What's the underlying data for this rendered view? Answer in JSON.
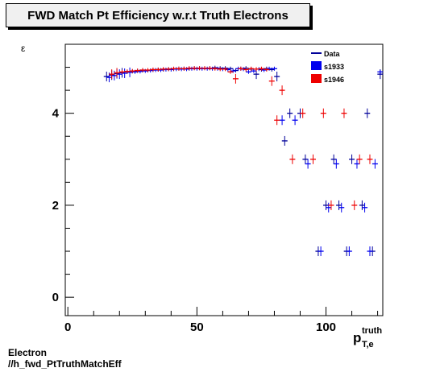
{
  "title": "FWD Match Pt Efficiency w.r.t Truth Electrons",
  "footer": {
    "line1": "Electron",
    "line2": "//h_fwd_PtTruthMatchEff"
  },
  "chart_data": {
    "type": "scatter",
    "title": "FWD Match Pt Efficiency w.r.t Truth Electrons",
    "xlabel_main": "p",
    "xlabel_sup": "truth",
    "xlabel_sub": "T,e",
    "ylabel": "ε",
    "xlim": [
      -1,
      122
    ],
    "ylim": [
      -0.4,
      5.5
    ],
    "x_ticks": [
      0,
      50,
      100
    ],
    "y_ticks": [
      0,
      2,
      4
    ],
    "legend": {
      "position": "top-right",
      "entries": [
        {
          "name": "Data",
          "color": "#000099",
          "style": "line"
        },
        {
          "name": "s1933",
          "color": "#0000ee",
          "style": "box"
        },
        {
          "name": "s1946",
          "color": "#ee0000",
          "style": "box"
        }
      ]
    },
    "series": [
      {
        "name": "Data",
        "color": "#000099",
        "points": [
          [
            15,
            4.8
          ],
          [
            17,
            4.83
          ],
          [
            19,
            4.86
          ],
          [
            21,
            4.88
          ],
          [
            23,
            4.9
          ],
          [
            25,
            4.91
          ],
          [
            27,
            4.92
          ],
          [
            29,
            4.93
          ],
          [
            31,
            4.93
          ],
          [
            33,
            4.94
          ],
          [
            35,
            4.95
          ],
          [
            37,
            4.95
          ],
          [
            39,
            4.96
          ],
          [
            41,
            4.96
          ],
          [
            43,
            4.97
          ],
          [
            45,
            4.97
          ],
          [
            47,
            4.97
          ],
          [
            49,
            4.98
          ],
          [
            51,
            4.98
          ],
          [
            53,
            4.98
          ],
          [
            55,
            4.98
          ],
          [
            57,
            4.99
          ],
          [
            59,
            4.98
          ],
          [
            61,
            4.98
          ],
          [
            63,
            4.97
          ],
          [
            65,
            4.93
          ],
          [
            67,
            4.97
          ],
          [
            69,
            4.98
          ],
          [
            71,
            4.96
          ],
          [
            73,
            4.85
          ],
          [
            75,
            4.95
          ],
          [
            77,
            4.97
          ],
          [
            79,
            4.95
          ],
          [
            81,
            4.8
          ],
          [
            84,
            3.4
          ],
          [
            86,
            4.0
          ],
          [
            90,
            4.0
          ],
          [
            92,
            3.0
          ],
          [
            97,
            1.0
          ],
          [
            100,
            2.0
          ],
          [
            103,
            3.0
          ],
          [
            105,
            2.0
          ],
          [
            108,
            1.0
          ],
          [
            110,
            3.0
          ],
          [
            114,
            2.0
          ],
          [
            116,
            4.0
          ],
          [
            118,
            1.0
          ],
          [
            121,
            4.85
          ]
        ]
      },
      {
        "name": "s1933",
        "color": "#0000ee",
        "points": [
          [
            16,
            4.78
          ],
          [
            18,
            4.82
          ],
          [
            20,
            4.85
          ],
          [
            22,
            4.87
          ],
          [
            24,
            4.89
          ],
          [
            26,
            4.9
          ],
          [
            28,
            4.91
          ],
          [
            30,
            4.92
          ],
          [
            32,
            4.93
          ],
          [
            34,
            4.94
          ],
          [
            36,
            4.94
          ],
          [
            38,
            4.95
          ],
          [
            40,
            4.95
          ],
          [
            42,
            4.96
          ],
          [
            44,
            4.96
          ],
          [
            46,
            4.96
          ],
          [
            48,
            4.97
          ],
          [
            50,
            4.97
          ],
          [
            52,
            4.97
          ],
          [
            54,
            4.97
          ],
          [
            56,
            4.97
          ],
          [
            58,
            4.97
          ],
          [
            60,
            4.96
          ],
          [
            62,
            4.95
          ],
          [
            64,
            4.92
          ],
          [
            66,
            4.97
          ],
          [
            68,
            4.96
          ],
          [
            70,
            4.9
          ],
          [
            72,
            4.92
          ],
          [
            74,
            4.96
          ],
          [
            76,
            4.94
          ],
          [
            78,
            4.97
          ],
          [
            80,
            4.97
          ],
          [
            83,
            3.85
          ],
          [
            88,
            3.85
          ],
          [
            93,
            2.9
          ],
          [
            98,
            1.0
          ],
          [
            101,
            1.95
          ],
          [
            104,
            2.9
          ],
          [
            106,
            1.95
          ],
          [
            109,
            1.0
          ],
          [
            112,
            2.9
          ],
          [
            115,
            1.95
          ],
          [
            117,
            1.0
          ],
          [
            119,
            2.9
          ],
          [
            121,
            4.9
          ]
        ]
      },
      {
        "name": "s1946",
        "color": "#ee0000",
        "points": [
          [
            17,
            4.85
          ],
          [
            19,
            4.88
          ],
          [
            21,
            4.9
          ],
          [
            23,
            4.91
          ],
          [
            25,
            4.92
          ],
          [
            27,
            4.93
          ],
          [
            29,
            4.94
          ],
          [
            31,
            4.94
          ],
          [
            33,
            4.95
          ],
          [
            35,
            4.95
          ],
          [
            37,
            4.96
          ],
          [
            39,
            4.96
          ],
          [
            41,
            4.97
          ],
          [
            43,
            4.97
          ],
          [
            45,
            4.97
          ],
          [
            47,
            4.98
          ],
          [
            49,
            4.98
          ],
          [
            51,
            4.98
          ],
          [
            53,
            4.98
          ],
          [
            55,
            4.98
          ],
          [
            57,
            4.97
          ],
          [
            59,
            4.96
          ],
          [
            61,
            4.96
          ],
          [
            63,
            4.9
          ],
          [
            65,
            4.75
          ],
          [
            67,
            4.97
          ],
          [
            69,
            4.95
          ],
          [
            71,
            4.97
          ],
          [
            73,
            4.96
          ],
          [
            75,
            4.97
          ],
          [
            77,
            4.95
          ],
          [
            79,
            4.7
          ],
          [
            81,
            3.85
          ],
          [
            83,
            4.5
          ],
          [
            87,
            3.0
          ],
          [
            91,
            4.0
          ],
          [
            95,
            3.0
          ],
          [
            99,
            4.0
          ],
          [
            102,
            2.0
          ],
          [
            107,
            4.0
          ],
          [
            111,
            2.0
          ],
          [
            113,
            3.0
          ],
          [
            117,
            3.0
          ]
        ]
      }
    ]
  }
}
